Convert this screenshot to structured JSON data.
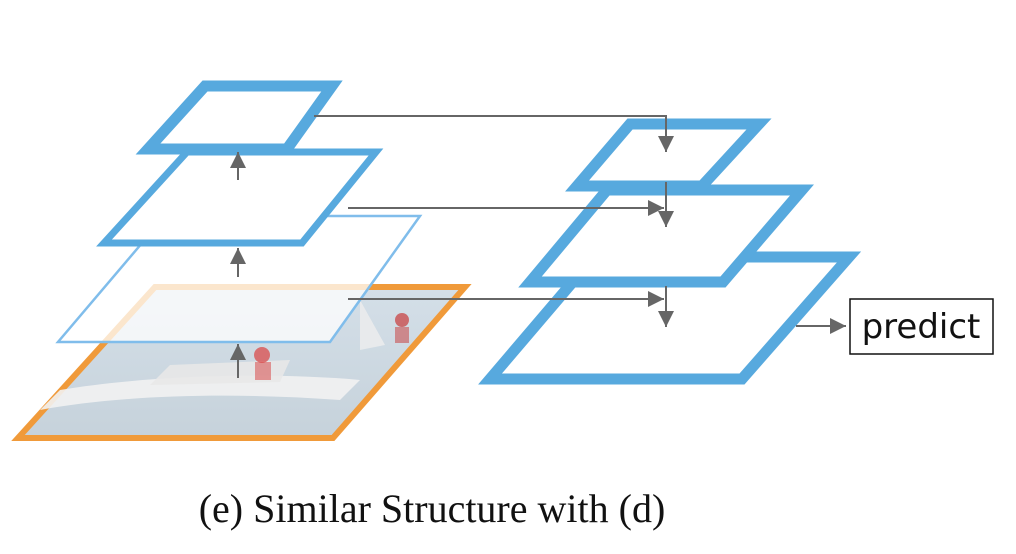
{
  "diagram": {
    "output_label": "predict",
    "caption": "(e) Similar Structure with (d)",
    "colors": {
      "feature_map_blue": "#57A9DE",
      "thin_layer_blue": "#80BDEB",
      "input_orange": "#F09A3A",
      "arrow_gray": "#666666",
      "text": "#111111"
    },
    "icons": {
      "input_image": "boat-photo-icon",
      "arrows": "arrow-icon"
    }
  }
}
